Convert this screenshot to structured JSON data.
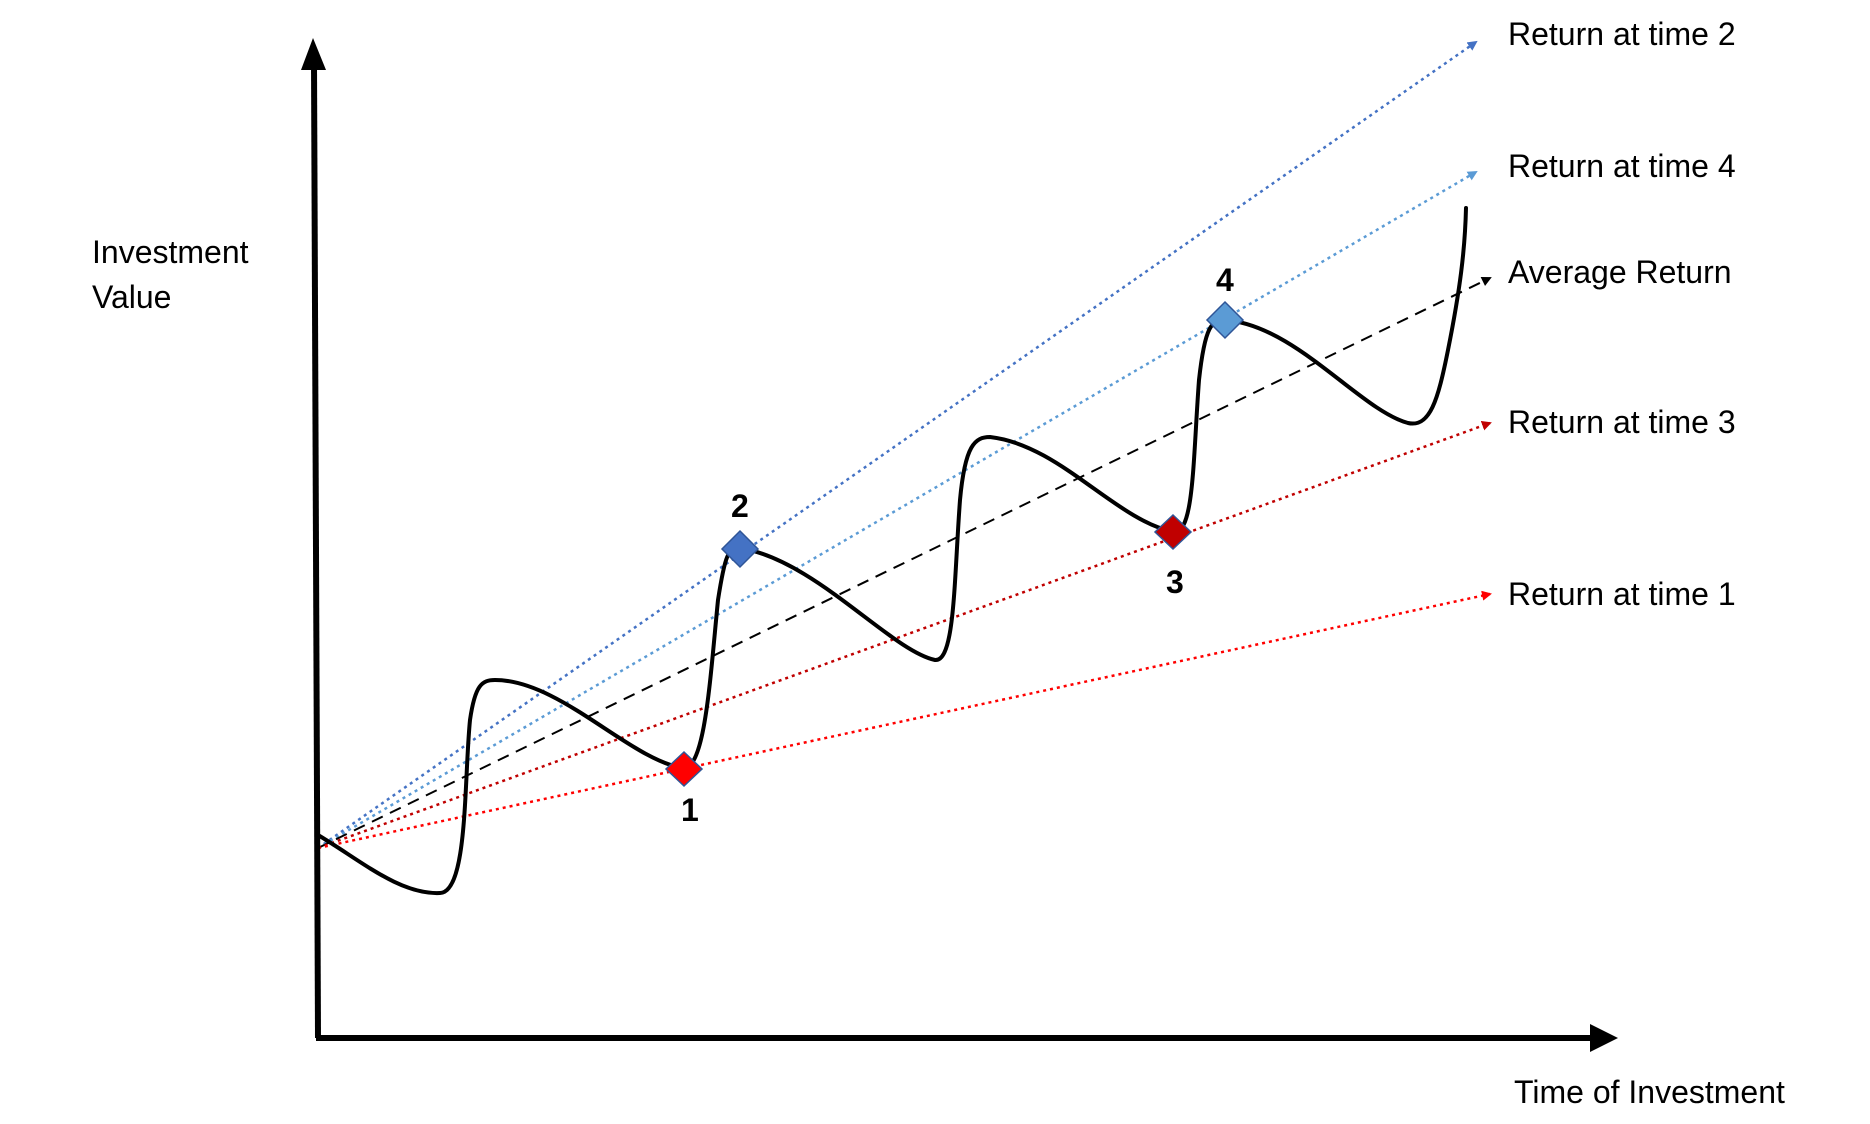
{
  "axes": {
    "y_label_line1": "Investment",
    "y_label_line2": "Value",
    "x_label": "Time of Investment"
  },
  "lines": [
    {
      "id": "time2",
      "label": "Return at time 2",
      "color": "#4472C4",
      "style": "dotted"
    },
    {
      "id": "time4",
      "label": "Return at time 4",
      "color": "#5B9BD5",
      "style": "dotted"
    },
    {
      "id": "average",
      "label": "Average Return",
      "color": "#000000",
      "style": "dashed"
    },
    {
      "id": "time3",
      "label": "Return at time 3",
      "color": "#C00000",
      "style": "dotted"
    },
    {
      "id": "time1",
      "label": "Return at time 1",
      "color": "#FF0000",
      "style": "dotted"
    }
  ],
  "points": [
    {
      "label": "1",
      "color": "#FF0000"
    },
    {
      "label": "2",
      "color": "#4472C4"
    },
    {
      "label": "3",
      "color": "#C00000"
    },
    {
      "label": "4",
      "color": "#5B9BD5"
    }
  ],
  "colors": {
    "axis": "#000000",
    "curve": "#000000",
    "marker_stroke": "#2F5597"
  }
}
